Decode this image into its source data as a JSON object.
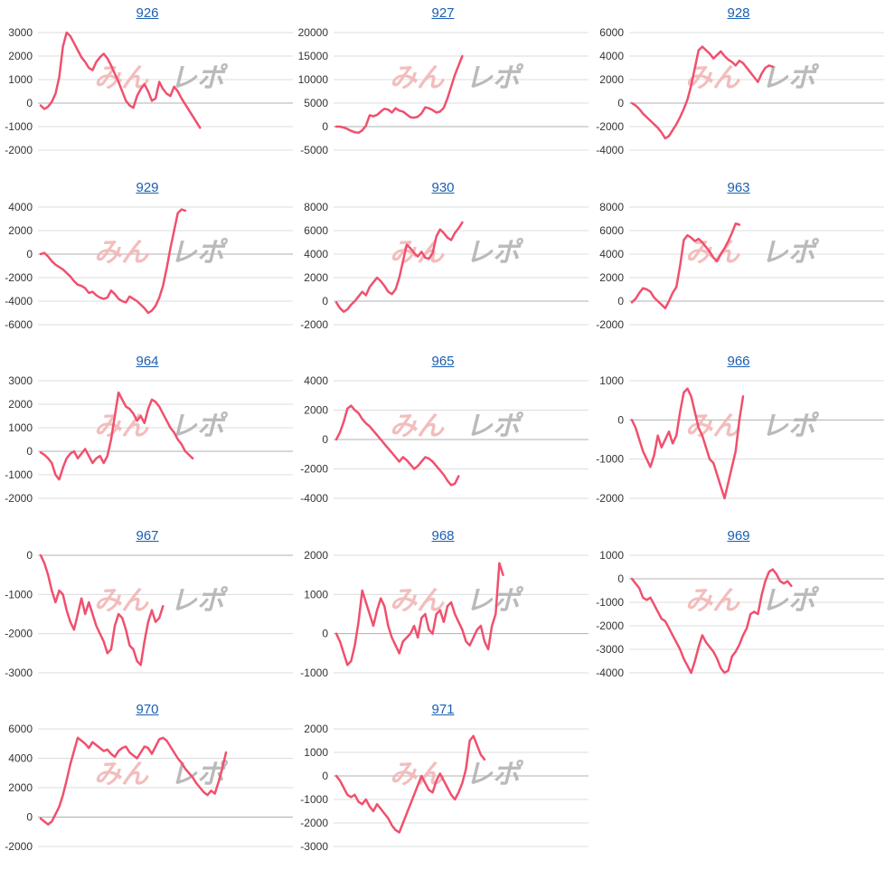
{
  "line_color": "#f0506e",
  "title_color": "#1a5fb4",
  "grid_color": "#dcdcdc",
  "zero_line_color": "#b0b0b0",
  "tick_color": "#333333",
  "watermark": {
    "part1": "みんレポ",
    "color1": "#f2b6b6",
    "color2": "#b3b3b3"
  },
  "chart_data": [
    {
      "type": "line",
      "title": "926",
      "yticks": [
        3000,
        2000,
        1000,
        0,
        -1000,
        -2000
      ],
      "ylim": [
        -2000,
        3000
      ],
      "values": [
        -100,
        -250,
        -150,
        50,
        400,
        1100,
        2400,
        3000,
        2850,
        2550,
        2250,
        1950,
        1750,
        1500,
        1400,
        1750,
        1950,
        2100,
        1900,
        1600,
        1250,
        900,
        500,
        100,
        -100,
        -200,
        300,
        600,
        800,
        500,
        100,
        200,
        900,
        600,
        400,
        300,
        700,
        500,
        200,
        -50,
        -300,
        -550,
        -800,
        -1050
      ]
    },
    {
      "type": "line",
      "title": "927",
      "yticks": [
        20000,
        15000,
        10000,
        5000,
        0,
        -5000
      ],
      "ylim": [
        -5000,
        20000
      ],
      "values": [
        0,
        0,
        -200,
        -500,
        -900,
        -1200,
        -1300,
        -800,
        200,
        2400,
        2200,
        2500,
        3200,
        3800,
        3600,
        3000,
        3900,
        3400,
        3200,
        2600,
        2000,
        1900,
        2100,
        2800,
        4100,
        3900,
        3500,
        3000,
        3200,
        4000,
        6000,
        8500,
        11000,
        13000,
        15000
      ]
    },
    {
      "type": "line",
      "title": "928",
      "yticks": [
        6000,
        4000,
        2000,
        0,
        -2000,
        -4000
      ],
      "ylim": [
        -4000,
        6000
      ],
      "values": [
        0,
        -200,
        -500,
        -900,
        -1200,
        -1500,
        -1800,
        -2100,
        -2500,
        -3000,
        -2800,
        -2300,
        -1800,
        -1200,
        -500,
        300,
        1500,
        3000,
        4500,
        4800,
        4500,
        4200,
        3800,
        4100,
        4400,
        4000,
        3700,
        3500,
        3200,
        3600,
        3400,
        3000,
        2600,
        2200,
        1800,
        2500,
        3000,
        3200,
        3100
      ]
    },
    {
      "type": "line",
      "title": "929",
      "yticks": [
        4000,
        2000,
        0,
        -2000,
        -4000,
        -6000
      ],
      "ylim": [
        -6000,
        4000
      ],
      "values": [
        0,
        100,
        -200,
        -600,
        -900,
        -1100,
        -1300,
        -1600,
        -1900,
        -2300,
        -2600,
        -2700,
        -2900,
        -3300,
        -3200,
        -3500,
        -3700,
        -3800,
        -3700,
        -3100,
        -3400,
        -3800,
        -4000,
        -4100,
        -3600,
        -3800,
        -4000,
        -4300,
        -4600,
        -5000,
        -4800,
        -4400,
        -3700,
        -2700,
        -1200,
        500,
        2000,
        3500,
        3800,
        3700
      ]
    },
    {
      "type": "line",
      "title": "930",
      "yticks": [
        8000,
        6000,
        4000,
        2000,
        0,
        -2000
      ],
      "ylim": [
        -2000,
        8000
      ],
      "values": [
        -100,
        -600,
        -900,
        -700,
        -300,
        0,
        400,
        800,
        500,
        1200,
        1600,
        2000,
        1700,
        1300,
        800,
        600,
        1000,
        2000,
        3400,
        4800,
        4500,
        4100,
        3800,
        4200,
        3700,
        3600,
        4100,
        5500,
        6100,
        5800,
        5400,
        5200,
        5800,
        6200,
        6700
      ]
    },
    {
      "type": "line",
      "title": "963",
      "yticks": [
        8000,
        6000,
        4000,
        2000,
        0,
        -2000
      ],
      "ylim": [
        -2000,
        8000
      ],
      "values": [
        -100,
        200,
        700,
        1100,
        1000,
        800,
        300,
        0,
        -300,
        -600,
        0,
        700,
        1200,
        3000,
        5200,
        5600,
        5400,
        5100,
        5300,
        5000,
        4600,
        4200,
        3700,
        3400,
        4000,
        4500,
        5100,
        5800,
        6600,
        6500
      ]
    },
    {
      "type": "line",
      "title": "964",
      "yticks": [
        3000,
        2000,
        1000,
        0,
        -1000,
        -2000
      ],
      "ylim": [
        -2000,
        3000
      ],
      "values": [
        -50,
        -150,
        -300,
        -500,
        -1000,
        -1200,
        -700,
        -300,
        -100,
        0,
        -300,
        -100,
        100,
        -200,
        -500,
        -300,
        -200,
        -500,
        -200,
        500,
        1500,
        2500,
        2200,
        1900,
        1800,
        1600,
        1300,
        1500,
        1200,
        1800,
        2200,
        2100,
        1900,
        1600,
        1300,
        1000,
        800,
        500,
        300,
        0,
        -150,
        -300
      ]
    },
    {
      "type": "line",
      "title": "965",
      "yticks": [
        4000,
        2000,
        0,
        -2000,
        -4000
      ],
      "ylim": [
        -4000,
        4000
      ],
      "values": [
        0,
        500,
        1200,
        2100,
        2300,
        2000,
        1800,
        1400,
        1100,
        900,
        600,
        300,
        0,
        -300,
        -600,
        -900,
        -1200,
        -1500,
        -1200,
        -1400,
        -1700,
        -2000,
        -1800,
        -1500,
        -1200,
        -1300,
        -1500,
        -1800,
        -2100,
        -2400,
        -2800,
        -3100,
        -3000,
        -2500
      ]
    },
    {
      "type": "line",
      "title": "966",
      "yticks": [
        1000,
        0,
        -1000,
        -2000
      ],
      "ylim": [
        -2000,
        1000
      ],
      "values": [
        0,
        -200,
        -500,
        -800,
        -1000,
        -1200,
        -900,
        -400,
        -700,
        -500,
        -300,
        -600,
        -400,
        200,
        700,
        800,
        600,
        200,
        -200,
        -400,
        -700,
        -1000,
        -1100,
        -1400,
        -1700,
        -2000,
        -1600,
        -1200,
        -800,
        0,
        600
      ]
    },
    {
      "type": "line",
      "title": "967",
      "yticks": [
        0,
        -1000,
        -2000,
        -3000
      ],
      "ylim": [
        -3000,
        0
      ],
      "values": [
        0,
        -200,
        -500,
        -900,
        -1200,
        -900,
        -1000,
        -1400,
        -1700,
        -1900,
        -1500,
        -1100,
        -1500,
        -1200,
        -1500,
        -1800,
        -2000,
        -2200,
        -2500,
        -2400,
        -1800,
        -1500,
        -1600,
        -1900,
        -2300,
        -2400,
        -2700,
        -2800,
        -2200,
        -1700,
        -1400,
        -1700,
        -1600,
        -1300
      ]
    },
    {
      "type": "line",
      "title": "968",
      "yticks": [
        2000,
        1000,
        0,
        -1000
      ],
      "ylim": [
        -1000,
        2000
      ],
      "values": [
        0,
        -200,
        -500,
        -800,
        -700,
        -300,
        300,
        1100,
        800,
        500,
        200,
        600,
        900,
        700,
        200,
        -100,
        -300,
        -500,
        -200,
        -100,
        0,
        200,
        -100,
        400,
        500,
        100,
        0,
        500,
        600,
        300,
        700,
        800,
        500,
        300,
        100,
        -200,
        -300,
        -100,
        100,
        200,
        -200,
        -400,
        200,
        500,
        1800,
        1500
      ]
    },
    {
      "type": "line",
      "title": "969",
      "yticks": [
        1000,
        0,
        -1000,
        -2000,
        -3000,
        -4000
      ],
      "ylim": [
        -4000,
        1000
      ],
      "values": [
        0,
        -200,
        -400,
        -800,
        -900,
        -800,
        -1100,
        -1400,
        -1700,
        -1800,
        -2100,
        -2400,
        -2700,
        -3000,
        -3400,
        -3700,
        -4000,
        -3500,
        -2900,
        -2400,
        -2700,
        -2900,
        -3100,
        -3400,
        -3800,
        -4000,
        -3900,
        -3300,
        -3100,
        -2800,
        -2400,
        -2100,
        -1500,
        -1400,
        -1500,
        -700,
        -100,
        300,
        400,
        200,
        -100,
        -200,
        -100,
        -300
      ]
    },
    {
      "type": "line",
      "title": "970",
      "yticks": [
        6000,
        4000,
        2000,
        0,
        -2000
      ],
      "ylim": [
        -2000,
        6000
      ],
      "values": [
        -100,
        -300,
        -500,
        -300,
        200,
        700,
        1500,
        2500,
        3600,
        4500,
        5400,
        5200,
        5000,
        4700,
        5100,
        4900,
        4700,
        4500,
        4600,
        4300,
        4100,
        4500,
        4700,
        4800,
        4400,
        4200,
        4000,
        4400,
        4800,
        4700,
        4300,
        4800,
        5300,
        5400,
        5200,
        4800,
        4400,
        4000,
        3700,
        3300,
        3000,
        2700,
        2300,
        2000,
        1700,
        1500,
        1800,
        1600,
        2400,
        3300,
        4400
      ]
    },
    {
      "type": "line",
      "title": "971",
      "yticks": [
        2000,
        1000,
        0,
        -1000,
        -2000,
        -3000
      ],
      "ylim": [
        -3000,
        2000
      ],
      "values": [
        0,
        -200,
        -500,
        -800,
        -900,
        -800,
        -1100,
        -1200,
        -1000,
        -1300,
        -1500,
        -1200,
        -1400,
        -1600,
        -1800,
        -2100,
        -2300,
        -2400,
        -2000,
        -1600,
        -1200,
        -800,
        -400,
        0,
        -300,
        -600,
        -700,
        -200,
        100,
        -200,
        -500,
        -800,
        -1000,
        -700,
        -300,
        300,
        1500,
        1700,
        1300,
        900,
        700
      ]
    }
  ]
}
